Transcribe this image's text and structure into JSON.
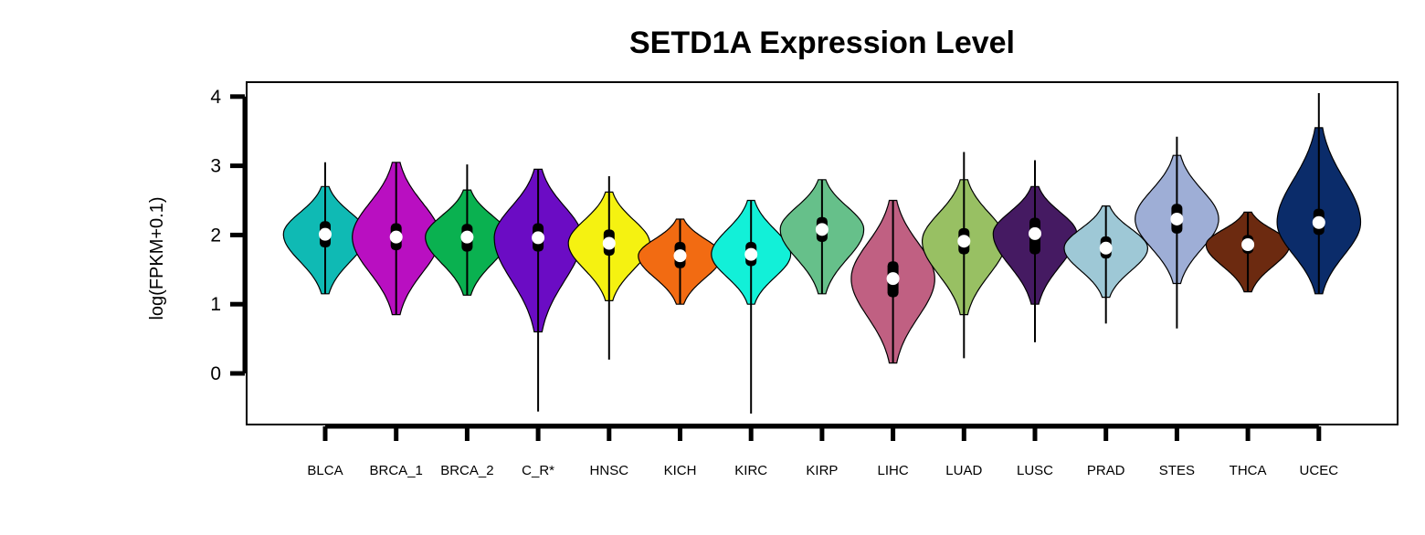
{
  "chart_data": {
    "type": "violin",
    "title": "SETD1A Expression Level",
    "xlabel": "",
    "ylabel": "log(FPKM+0.1)",
    "ylim": [
      -0.75,
      4.2
    ],
    "yticks": [
      0,
      1,
      2,
      3,
      4
    ],
    "yticks_labels": [
      "0",
      "1",
      "2",
      "3",
      "4"
    ],
    "legend": "none",
    "grid": false,
    "categories": [
      "BLCA",
      "BRCA_1",
      "BRCA_2",
      "C_R*",
      "HNSC",
      "KICH",
      "KIRC",
      "KIRP",
      "LIHC",
      "LUAD",
      "LUSC",
      "PRAD",
      "STES",
      "THCA",
      "UCEC"
    ],
    "series": [
      {
        "category": "BLCA",
        "color": "#0fbab4",
        "min": 1.15,
        "q1": 1.82,
        "median": 2.01,
        "q3": 2.2,
        "max": 3.05,
        "violin_min": 1.15,
        "violin_max": 2.7,
        "max_half_width": 0.4
      },
      {
        "category": "BRCA_1",
        "color": "#b90fc1",
        "min": 0.85,
        "q1": 1.78,
        "median": 1.97,
        "q3": 2.17,
        "max": 3.05,
        "violin_min": 0.85,
        "violin_max": 3.05,
        "max_half_width": 0.42
      },
      {
        "category": "BRCA_2",
        "color": "#0ab150",
        "min": 1.13,
        "q1": 1.76,
        "median": 1.97,
        "q3": 2.16,
        "max": 3.02,
        "violin_min": 1.13,
        "violin_max": 2.65,
        "max_half_width": 0.4
      },
      {
        "category": "C_R*",
        "color": "#6b0cc4",
        "min": -0.55,
        "q1": 1.76,
        "median": 1.96,
        "q3": 2.17,
        "max": 2.95,
        "violin_min": 0.6,
        "violin_max": 2.95,
        "max_half_width": 0.42
      },
      {
        "category": "HNSC",
        "color": "#f5f211",
        "min": 0.2,
        "q1": 1.7,
        "median": 1.88,
        "q3": 2.08,
        "max": 2.85,
        "violin_min": 1.05,
        "violin_max": 2.62,
        "max_half_width": 0.39
      },
      {
        "category": "KICH",
        "color": "#f26b12",
        "min": 1.0,
        "q1": 1.52,
        "median": 1.7,
        "q3": 1.9,
        "max": 2.23,
        "violin_min": 1.0,
        "violin_max": 2.23,
        "max_half_width": 0.4
      },
      {
        "category": "KIRC",
        "color": "#12f0d8",
        "min": -0.58,
        "q1": 1.55,
        "median": 1.72,
        "q3": 1.9,
        "max": 2.5,
        "violin_min": 1.0,
        "violin_max": 2.5,
        "max_half_width": 0.38
      },
      {
        "category": "KIRP",
        "color": "#66c08a",
        "min": 1.15,
        "q1": 1.9,
        "median": 2.08,
        "q3": 2.26,
        "max": 2.8,
        "violin_min": 1.15,
        "violin_max": 2.8,
        "max_half_width": 0.4
      },
      {
        "category": "LIHC",
        "color": "#c06082",
        "min": 0.15,
        "q1": 1.1,
        "median": 1.37,
        "q3": 1.62,
        "max": 2.5,
        "violin_min": 0.15,
        "violin_max": 2.5,
        "max_half_width": 0.4
      },
      {
        "category": "LUAD",
        "color": "#98c063",
        "min": 0.22,
        "q1": 1.72,
        "median": 1.91,
        "q3": 2.1,
        "max": 3.2,
        "violin_min": 0.85,
        "violin_max": 2.8,
        "max_half_width": 0.4
      },
      {
        "category": "LUSC",
        "color": "#451a62",
        "min": 0.45,
        "q1": 1.72,
        "median": 2.02,
        "q3": 2.25,
        "max": 3.08,
        "violin_min": 1.0,
        "violin_max": 2.7,
        "max_half_width": 0.4
      },
      {
        "category": "PRAD",
        "color": "#9ec8d6",
        "min": 0.72,
        "q1": 1.66,
        "median": 1.81,
        "q3": 1.98,
        "max": 2.42,
        "violin_min": 1.1,
        "violin_max": 2.42,
        "max_half_width": 0.4
      },
      {
        "category": "STES",
        "color": "#9eaed6",
        "min": 0.65,
        "q1": 2.02,
        "median": 2.23,
        "q3": 2.45,
        "max": 3.42,
        "violin_min": 1.3,
        "violin_max": 3.15,
        "max_half_width": 0.4
      },
      {
        "category": "THCA",
        "color": "#6c2a10",
        "min": 1.18,
        "q1": 1.73,
        "median": 1.86,
        "q3": 2.0,
        "max": 2.33,
        "violin_min": 1.18,
        "violin_max": 2.33,
        "max_half_width": 0.4
      },
      {
        "category": "UCEC",
        "color": "#0b2c6a",
        "min": 1.15,
        "q1": 2.0,
        "median": 2.18,
        "q3": 2.38,
        "max": 4.05,
        "violin_min": 1.15,
        "violin_max": 3.55,
        "max_half_width": 0.4
      }
    ]
  }
}
